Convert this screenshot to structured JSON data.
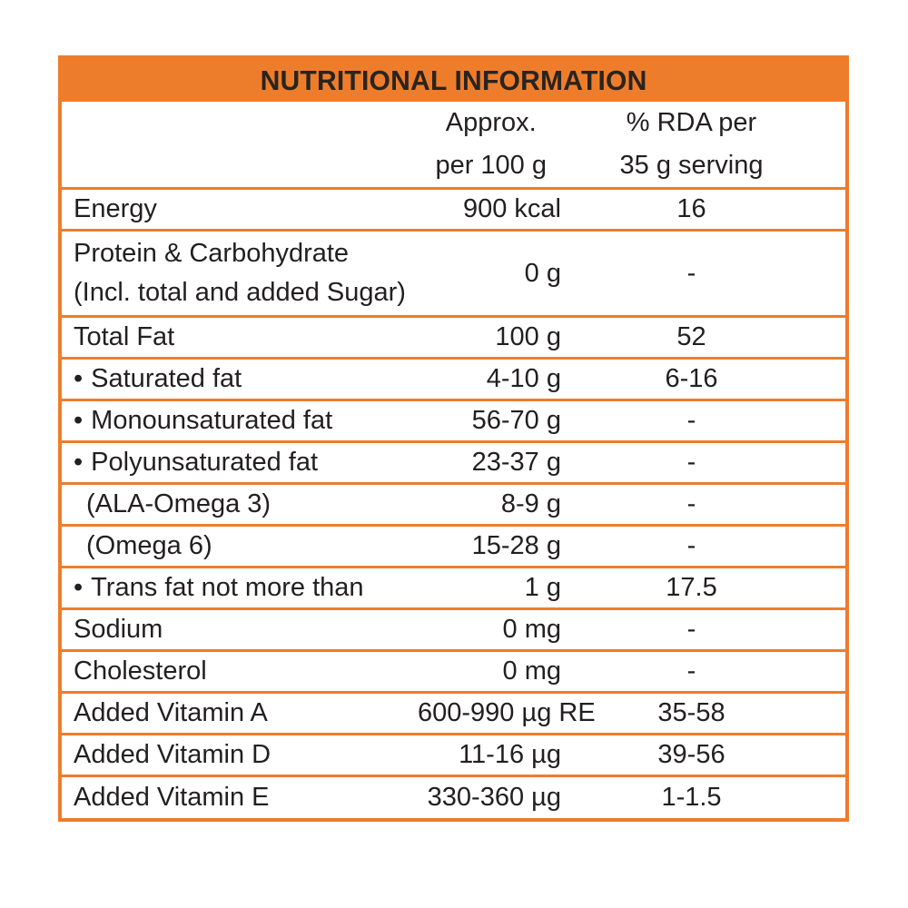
{
  "header": {
    "title": "NUTRITIONAL INFORMATION"
  },
  "columns": {
    "col2_line1": "Approx.",
    "col2_line2": "per 100 g",
    "col3_line1": "% RDA per",
    "col3_line2": "35 g serving"
  },
  "rows": [
    {
      "bullet": "",
      "label": "Energy",
      "label2": "",
      "indent": false,
      "amount": "900 kcal",
      "rda": "16"
    },
    {
      "bullet": "",
      "label": "Protein & Carbohydrate",
      "label2": "(Incl. total and added Sugar)",
      "indent": false,
      "amount": "0 g",
      "rda": "-"
    },
    {
      "bullet": "",
      "label": "Total Fat",
      "label2": "",
      "indent": false,
      "amount": "100 g",
      "rda": "52"
    },
    {
      "bullet": "•",
      "label": "Saturated fat",
      "label2": "",
      "indent": false,
      "amount": "4-10 g",
      "rda": "6-16"
    },
    {
      "bullet": "•",
      "label": "Monounsaturated fat",
      "label2": "",
      "indent": false,
      "amount": "56-70 g",
      "rda": "-"
    },
    {
      "bullet": "•",
      "label": "Polyunsaturated fat",
      "label2": "",
      "indent": false,
      "amount": "23-37 g",
      "rda": "-"
    },
    {
      "bullet": "",
      "label": "(ALA-Omega 3)",
      "label2": "",
      "indent": true,
      "amount": "8-9 g",
      "rda": "-"
    },
    {
      "bullet": "",
      "label": "(Omega 6)",
      "label2": "",
      "indent": true,
      "amount": "15-28 g",
      "rda": "-"
    },
    {
      "bullet": "•",
      "label": "Trans fat not more than",
      "label2": "",
      "indent": false,
      "amount": "1 g",
      "rda": "17.5"
    },
    {
      "bullet": "",
      "label": "Sodium",
      "label2": "",
      "indent": false,
      "amount": "0 mg",
      "rda": "-"
    },
    {
      "bullet": "",
      "label": "Cholesterol",
      "label2": "",
      "indent": false,
      "amount": "0 mg",
      "rda": "-"
    },
    {
      "bullet": "",
      "label": "Added Vitamin A",
      "label2": "",
      "indent": false,
      "amount": "600-990 µg RE",
      "rda": "35-58"
    },
    {
      "bullet": "",
      "label": "Added Vitamin D",
      "label2": "",
      "indent": false,
      "amount": "11-16 µg",
      "rda": "39-56"
    },
    {
      "bullet": "",
      "label": "Added Vitamin E",
      "label2": "",
      "indent": false,
      "amount": "330-360 µg",
      "rda": "1-1.5"
    }
  ],
  "colors": {
    "accent_orange": "#EE7D2B",
    "text": "#231F20",
    "background": "#FFFFFF"
  }
}
